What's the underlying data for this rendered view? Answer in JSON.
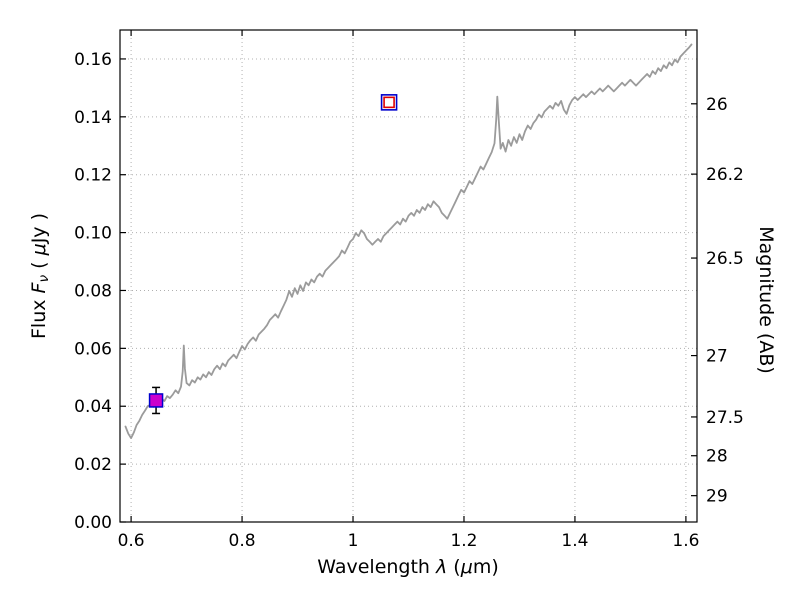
{
  "labels": {
    "ylabel_right": "Magnitude (AB)",
    "xlabel_parts": [
      {
        "t": "Wavelength  "
      },
      {
        "t": "λ",
        "style": "italic"
      },
      {
        "t": " ("
      },
      {
        "t": "μ",
        "style": "italic"
      },
      {
        "t": "m)"
      }
    ],
    "ylabel_parts": [
      {
        "t": "Flux  "
      },
      {
        "t": "F",
        "style": "italic"
      },
      {
        "t": "ν",
        "style": "sub"
      },
      {
        "t": "  ( "
      },
      {
        "t": "μ",
        "style": "italic"
      },
      {
        "t": "Jy )"
      }
    ]
  },
  "chart_data": {
    "type": "line",
    "title": "",
    "xlabel": "Wavelength λ (μm)",
    "ylabel": "Flux Fν ( μJy )",
    "ylabel_right": "Magnitude (AB)",
    "xlim": [
      0.58,
      1.62
    ],
    "ylim": [
      0.0,
      0.17
    ],
    "grid": true,
    "grid_color": "#b0b0b0",
    "spine_color": "#000000",
    "xticks": {
      "values": [
        0.6,
        0.8,
        1.0,
        1.2,
        1.4,
        1.6
      ],
      "labels": [
        "0.6",
        "0.8",
        "1",
        "1.2",
        "1.4",
        "1.6"
      ]
    },
    "yticks_left": {
      "values": [
        0.0,
        0.02,
        0.04,
        0.06,
        0.08,
        0.1,
        0.12,
        0.14,
        0.16
      ],
      "labels": [
        "0.00",
        "0.02",
        "0.04",
        "0.06",
        "0.08",
        "0.10",
        "0.12",
        "0.14",
        "0.16"
      ]
    },
    "yticks_right": {
      "magnitudes": [
        26,
        26.2,
        26.5,
        27,
        27.5,
        28,
        29
      ],
      "flux_positions": [
        0.1445,
        0.1202,
        0.0912,
        0.0575,
        0.0363,
        0.0229,
        0.0091
      ],
      "labels": [
        "26",
        "26.2",
        "26.5",
        "27",
        "27.5",
        "28",
        "29"
      ]
    },
    "series": [
      {
        "name": "model-spectrum",
        "color": "#9b9b9b",
        "width": 1.8,
        "points": [
          [
            0.59,
            0.033
          ],
          [
            0.595,
            0.0305
          ],
          [
            0.6,
            0.029
          ],
          [
            0.605,
            0.031
          ],
          [
            0.61,
            0.0335
          ],
          [
            0.615,
            0.035
          ],
          [
            0.62,
            0.037
          ],
          [
            0.625,
            0.0385
          ],
          [
            0.63,
            0.04
          ],
          [
            0.635,
            0.0405
          ],
          [
            0.64,
            0.0398
          ],
          [
            0.645,
            0.0415
          ],
          [
            0.65,
            0.0408
          ],
          [
            0.655,
            0.0425
          ],
          [
            0.66,
            0.0418
          ],
          [
            0.665,
            0.0435
          ],
          [
            0.67,
            0.0428
          ],
          [
            0.675,
            0.044
          ],
          [
            0.68,
            0.0455
          ],
          [
            0.685,
            0.0445
          ],
          [
            0.69,
            0.0468
          ],
          [
            0.693,
            0.052
          ],
          [
            0.695,
            0.061
          ],
          [
            0.697,
            0.053
          ],
          [
            0.7,
            0.048
          ],
          [
            0.705,
            0.0472
          ],
          [
            0.71,
            0.049
          ],
          [
            0.715,
            0.0482
          ],
          [
            0.72,
            0.05
          ],
          [
            0.725,
            0.0492
          ],
          [
            0.73,
            0.051
          ],
          [
            0.735,
            0.05
          ],
          [
            0.74,
            0.0518
          ],
          [
            0.745,
            0.0508
          ],
          [
            0.75,
            0.0528
          ],
          [
            0.755,
            0.054
          ],
          [
            0.76,
            0.0528
          ],
          [
            0.765,
            0.0548
          ],
          [
            0.77,
            0.0538
          ],
          [
            0.775,
            0.0558
          ],
          [
            0.78,
            0.0568
          ],
          [
            0.785,
            0.0578
          ],
          [
            0.79,
            0.0566
          ],
          [
            0.795,
            0.0588
          ],
          [
            0.8,
            0.0608
          ],
          [
            0.805,
            0.0596
          ],
          [
            0.81,
            0.0615
          ],
          [
            0.815,
            0.0628
          ],
          [
            0.82,
            0.0638
          ],
          [
            0.825,
            0.0626
          ],
          [
            0.83,
            0.0648
          ],
          [
            0.835,
            0.0658
          ],
          [
            0.84,
            0.0668
          ],
          [
            0.845,
            0.068
          ],
          [
            0.85,
            0.0698
          ],
          [
            0.855,
            0.0708
          ],
          [
            0.86,
            0.0718
          ],
          [
            0.865,
            0.0706
          ],
          [
            0.87,
            0.0728
          ],
          [
            0.875,
            0.0748
          ],
          [
            0.88,
            0.0768
          ],
          [
            0.885,
            0.0798
          ],
          [
            0.89,
            0.0778
          ],
          [
            0.895,
            0.0808
          ],
          [
            0.9,
            0.0788
          ],
          [
            0.905,
            0.0818
          ],
          [
            0.91,
            0.0798
          ],
          [
            0.915,
            0.0828
          ],
          [
            0.92,
            0.0818
          ],
          [
            0.925,
            0.0838
          ],
          [
            0.93,
            0.0828
          ],
          [
            0.935,
            0.0848
          ],
          [
            0.94,
            0.0858
          ],
          [
            0.945,
            0.0848
          ],
          [
            0.95,
            0.0868
          ],
          [
            0.955,
            0.0878
          ],
          [
            0.96,
            0.0888
          ],
          [
            0.965,
            0.0898
          ],
          [
            0.97,
            0.0908
          ],
          [
            0.975,
            0.0918
          ],
          [
            0.98,
            0.0938
          ],
          [
            0.985,
            0.0928
          ],
          [
            0.99,
            0.0948
          ],
          [
            0.995,
            0.0968
          ],
          [
            1.0,
            0.0978
          ],
          [
            1.005,
            0.0998
          ],
          [
            1.01,
            0.0988
          ],
          [
            1.015,
            0.1008
          ],
          [
            1.02,
            0.0998
          ],
          [
            1.025,
            0.0978
          ],
          [
            1.03,
            0.0968
          ],
          [
            1.035,
            0.0958
          ],
          [
            1.04,
            0.0968
          ],
          [
            1.045,
            0.0978
          ],
          [
            1.05,
            0.0968
          ],
          [
            1.055,
            0.0988
          ],
          [
            1.06,
            0.0998
          ],
          [
            1.065,
            0.1008
          ],
          [
            1.07,
            0.1018
          ],
          [
            1.075,
            0.1028
          ],
          [
            1.08,
            0.1038
          ],
          [
            1.085,
            0.1028
          ],
          [
            1.09,
            0.1048
          ],
          [
            1.095,
            0.1038
          ],
          [
            1.1,
            0.1058
          ],
          [
            1.105,
            0.1068
          ],
          [
            1.11,
            0.1058
          ],
          [
            1.115,
            0.1078
          ],
          [
            1.12,
            0.1068
          ],
          [
            1.125,
            0.1088
          ],
          [
            1.13,
            0.1078
          ],
          [
            1.135,
            0.1098
          ],
          [
            1.14,
            0.1088
          ],
          [
            1.145,
            0.1108
          ],
          [
            1.15,
            0.1098
          ],
          [
            1.155,
            0.1088
          ],
          [
            1.16,
            0.1068
          ],
          [
            1.165,
            0.1058
          ],
          [
            1.17,
            0.1048
          ],
          [
            1.175,
            0.1068
          ],
          [
            1.18,
            0.1088
          ],
          [
            1.185,
            0.1108
          ],
          [
            1.19,
            0.1128
          ],
          [
            1.195,
            0.1148
          ],
          [
            1.2,
            0.1138
          ],
          [
            1.205,
            0.1158
          ],
          [
            1.21,
            0.1178
          ],
          [
            1.215,
            0.1168
          ],
          [
            1.22,
            0.1188
          ],
          [
            1.225,
            0.1208
          ],
          [
            1.23,
            0.1228
          ],
          [
            1.235,
            0.1218
          ],
          [
            1.24,
            0.1238
          ],
          [
            1.245,
            0.1258
          ],
          [
            1.25,
            0.1278
          ],
          [
            1.255,
            0.1308
          ],
          [
            1.258,
            0.139
          ],
          [
            1.26,
            0.147
          ],
          [
            1.263,
            0.138
          ],
          [
            1.266,
            0.129
          ],
          [
            1.27,
            0.131
          ],
          [
            1.275,
            0.128
          ],
          [
            1.28,
            0.132
          ],
          [
            1.285,
            0.13
          ],
          [
            1.29,
            0.133
          ],
          [
            1.295,
            0.131
          ],
          [
            1.3,
            0.134
          ],
          [
            1.305,
            0.132
          ],
          [
            1.31,
            0.135
          ],
          [
            1.315,
            0.137
          ],
          [
            1.32,
            0.1358
          ],
          [
            1.325,
            0.1378
          ],
          [
            1.33,
            0.139
          ],
          [
            1.335,
            0.1408
          ],
          [
            1.34,
            0.1398
          ],
          [
            1.345,
            0.1418
          ],
          [
            1.35,
            0.1428
          ],
          [
            1.355,
            0.1438
          ],
          [
            1.36,
            0.1428
          ],
          [
            1.365,
            0.1448
          ],
          [
            1.37,
            0.1438
          ],
          [
            1.375,
            0.1455
          ],
          [
            1.38,
            0.1425
          ],
          [
            1.385,
            0.141
          ],
          [
            1.39,
            0.144
          ],
          [
            1.395,
            0.1458
          ],
          [
            1.4,
            0.1468
          ],
          [
            1.405,
            0.1458
          ],
          [
            1.41,
            0.1468
          ],
          [
            1.415,
            0.1478
          ],
          [
            1.42,
            0.1468
          ],
          [
            1.425,
            0.1478
          ],
          [
            1.43,
            0.1488
          ],
          [
            1.435,
            0.1478
          ],
          [
            1.44,
            0.1488
          ],
          [
            1.445,
            0.1498
          ],
          [
            1.45,
            0.1488
          ],
          [
            1.455,
            0.1498
          ],
          [
            1.46,
            0.1508
          ],
          [
            1.465,
            0.1498
          ],
          [
            1.47,
            0.1488
          ],
          [
            1.475,
            0.1498
          ],
          [
            1.48,
            0.1508
          ],
          [
            1.485,
            0.1518
          ],
          [
            1.49,
            0.1508
          ],
          [
            1.495,
            0.1518
          ],
          [
            1.5,
            0.1528
          ],
          [
            1.505,
            0.1518
          ],
          [
            1.51,
            0.1508
          ],
          [
            1.515,
            0.1518
          ],
          [
            1.52,
            0.1528
          ],
          [
            1.525,
            0.1538
          ],
          [
            1.53,
            0.1548
          ],
          [
            1.535,
            0.1538
          ],
          [
            1.54,
            0.1558
          ],
          [
            1.545,
            0.1548
          ],
          [
            1.55,
            0.1568
          ],
          [
            1.555,
            0.1558
          ],
          [
            1.56,
            0.1578
          ],
          [
            1.565,
            0.1568
          ],
          [
            1.57,
            0.1588
          ],
          [
            1.575,
            0.1578
          ],
          [
            1.58,
            0.1598
          ],
          [
            1.585,
            0.1588
          ],
          [
            1.59,
            0.1608
          ],
          [
            1.595,
            0.1618
          ],
          [
            1.6,
            0.1628
          ],
          [
            1.605,
            0.1638
          ],
          [
            1.61,
            0.165
          ]
        ]
      }
    ],
    "photometry": [
      {
        "name": "measured-flux-point",
        "x": 0.645,
        "y": 0.042,
        "yerr": 0.0045,
        "marker": "filled-square",
        "fill": "#cc00cc",
        "edge": "#0000cc",
        "errorbar_color": "#000000"
      },
      {
        "name": "model-photometry-point",
        "x": 1.065,
        "y": 0.145,
        "marker": "open-square-double",
        "outer_edge": "#0000cc",
        "inner_edge": "#dd0000"
      }
    ]
  }
}
